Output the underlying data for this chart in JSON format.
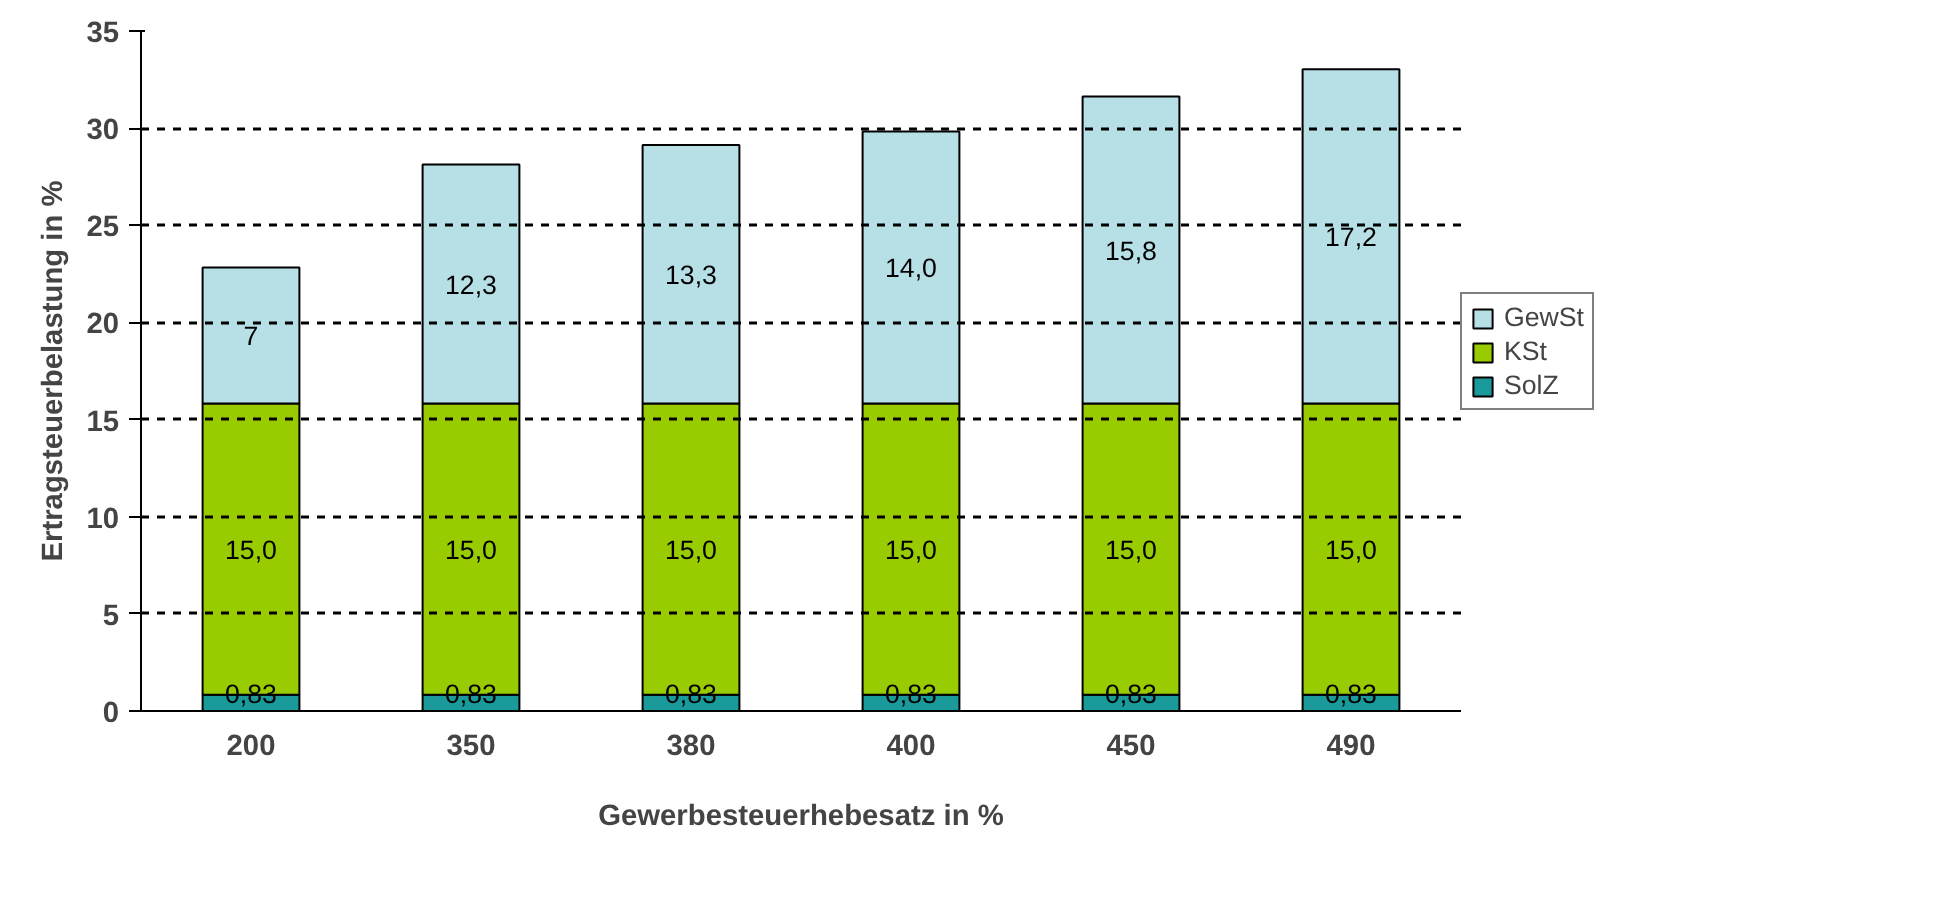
{
  "chart_data": {
    "type": "bar",
    "stacked": true,
    "xlabel": "Gewerbesteuerhebesatz in %",
    "ylabel": "Ertragsteuerbelastung in %",
    "categories": [
      "200",
      "350",
      "380",
      "400",
      "450",
      "490"
    ],
    "series": [
      {
        "name": "SolZ",
        "color": "#1a9a9a",
        "values": [
          0.83,
          0.83,
          0.83,
          0.83,
          0.83,
          0.83
        ],
        "value_labels": [
          "0,83",
          "0,83",
          "0,83",
          "0,83",
          "0,83",
          "0,83"
        ]
      },
      {
        "name": "KSt",
        "color": "#99cc00",
        "values": [
          15.0,
          15.0,
          15.0,
          15.0,
          15.0,
          15.0
        ],
        "value_labels": [
          "15,0",
          "15,0",
          "15,0",
          "15,0",
          "15,0",
          "15,0"
        ]
      },
      {
        "name": "GewSt",
        "color": "#b7dfe6",
        "values": [
          7,
          12.3,
          13.3,
          14.0,
          15.8,
          17.2
        ],
        "value_labels": [
          "7",
          "12,3",
          "13,3",
          "14,0",
          "15,8",
          "17,2"
        ]
      }
    ],
    "ylim": [
      0,
      35
    ],
    "yticks": [
      0,
      5,
      10,
      15,
      20,
      25,
      30,
      35
    ],
    "grid": "y",
    "legend": "right"
  }
}
